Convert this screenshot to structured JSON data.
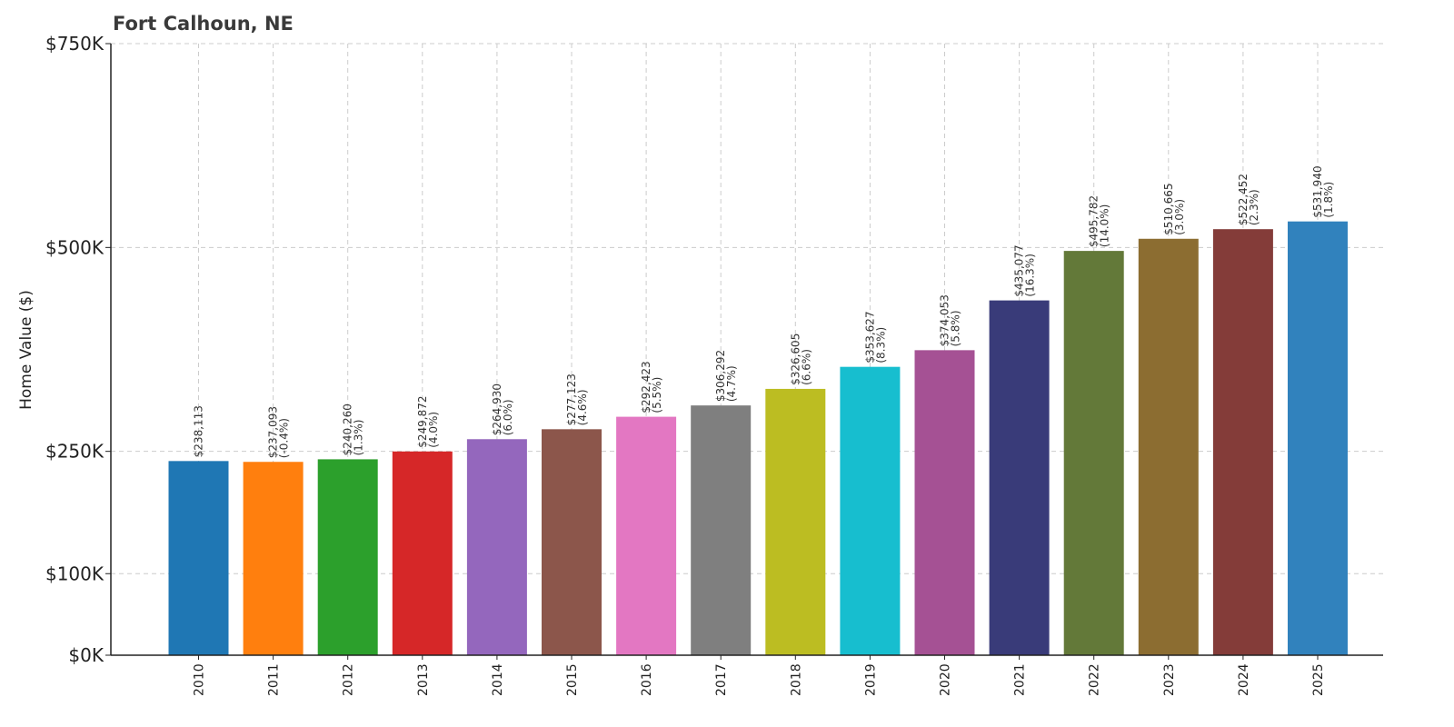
{
  "chart_data": {
    "type": "bar",
    "title": "Fort Calhoun, NE",
    "xlabel": "",
    "ylabel": "Home Value ($)",
    "y_tick_values": [
      0,
      100000,
      250000,
      500000,
      750000
    ],
    "y_tick_labels": [
      "$0K",
      "$100K",
      "$250K",
      "$500K",
      "$750K"
    ],
    "ylim": [
      0,
      750000
    ],
    "grid": true,
    "categories": [
      "2010",
      "2011",
      "2012",
      "2013",
      "2014",
      "2015",
      "2016",
      "2017",
      "2018",
      "2019",
      "2020",
      "2021",
      "2022",
      "2023",
      "2024",
      "2025"
    ],
    "values": [
      238113,
      237093,
      240260,
      249872,
      264930,
      277123,
      292423,
      306292,
      326605,
      353627,
      374053,
      435077,
      495782,
      510665,
      522452,
      531940
    ],
    "value_labels": [
      "$238,113",
      "$237,093",
      "$240,260",
      "$249,872",
      "$264,930",
      "$277,123",
      "$292,423",
      "$306,292",
      "$326,605",
      "$353,627",
      "$374,053",
      "$435,077",
      "$495,782",
      "$510,665",
      "$522,452",
      "$531,940"
    ],
    "change_labels": [
      "",
      "(-0.4%)",
      "(1.3%)",
      "(4.0%)",
      "(6.0%)",
      "(4.6%)",
      "(5.5%)",
      "(4.7%)",
      "(6.6%)",
      "(8.3%)",
      "(5.8%)",
      "(16.3%)",
      "(14.0%)",
      "(3.0%)",
      "(2.3%)",
      "(1.8%)"
    ],
    "colors": [
      "#1f77b4",
      "#ff7f0e",
      "#2ca02c",
      "#d62728",
      "#9467bd",
      "#8c564b",
      "#e377c2",
      "#7f7f7f",
      "#bcbd22",
      "#17becf",
      "#a55194",
      "#393b79",
      "#637939",
      "#8c6d31",
      "#843c39",
      "#3182bd"
    ]
  }
}
